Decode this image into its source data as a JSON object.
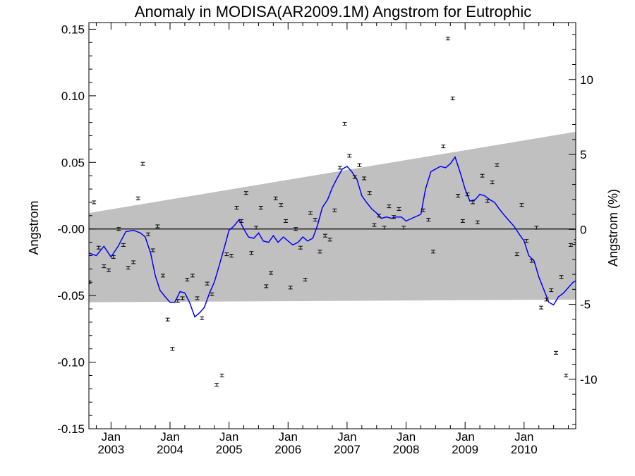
{
  "chart_data": {
    "type": "scatter",
    "title": "Anomaly in MODISA(AR2009.1M) Angstrom for Eutrophic",
    "ylabel": "Angstrom",
    "y2label": "Angstrom (%)",
    "ylim": [
      -0.15,
      0.155
    ],
    "y2lim": [
      -13.3,
      13.8
    ],
    "xlim": [
      2002.625,
      2010.875
    ],
    "y_ticks": [
      {
        "value": 0.15,
        "label": "0.15"
      },
      {
        "value": 0.1,
        "label": "0.10"
      },
      {
        "value": 0.05,
        "label": "0.05"
      },
      {
        "value": 0.0,
        "label": "-0.00"
      },
      {
        "value": -0.05,
        "label": "-0.05"
      },
      {
        "value": -0.1,
        "label": "-0.10"
      },
      {
        "value": -0.15,
        "label": "-0.15"
      }
    ],
    "y2_ticks": [
      {
        "value": 10,
        "label": "10"
      },
      {
        "value": 5,
        "label": "5"
      },
      {
        "value": 0,
        "label": "0"
      },
      {
        "value": -5,
        "label": "-5"
      },
      {
        "value": -10,
        "label": "-10"
      }
    ],
    "x_ticks": [
      {
        "value": 2003.0,
        "month": "Jan",
        "year": "2003"
      },
      {
        "value": 2004.0,
        "month": "Jan",
        "year": "2004"
      },
      {
        "value": 2005.0,
        "month": "Jan",
        "year": "2005"
      },
      {
        "value": 2006.0,
        "month": "Jan",
        "year": "2006"
      },
      {
        "value": 2007.0,
        "month": "Jan",
        "year": "2007"
      },
      {
        "value": 2008.0,
        "month": "Jan",
        "year": "2008"
      },
      {
        "value": 2009.0,
        "month": "Jan",
        "year": "2009"
      },
      {
        "value": 2010.0,
        "month": "Jan",
        "year": "2010"
      }
    ],
    "zero_line": 0.0,
    "band": {
      "x": [
        2002.625,
        2010.875
      ],
      "upper": [
        0.012,
        0.073
      ],
      "lower": [
        -0.055,
        -0.053
      ],
      "color": "#c0c0c0"
    },
    "points": {
      "color": "#000000",
      "x": [
        2002.63,
        2002.71,
        2002.79,
        2002.88,
        2002.96,
        2003.04,
        2003.13,
        2003.21,
        2003.29,
        2003.38,
        2003.46,
        2003.54,
        2003.63,
        2003.71,
        2003.79,
        2003.88,
        2003.96,
        2004.04,
        2004.13,
        2004.21,
        2004.29,
        2004.38,
        2004.46,
        2004.54,
        2004.63,
        2004.71,
        2004.79,
        2004.88,
        2004.96,
        2005.04,
        2005.13,
        2005.21,
        2005.29,
        2005.38,
        2005.46,
        2005.54,
        2005.63,
        2005.71,
        2005.79,
        2005.88,
        2005.96,
        2006.04,
        2006.13,
        2006.21,
        2006.29,
        2006.38,
        2006.46,
        2006.54,
        2006.63,
        2006.71,
        2006.79,
        2006.88,
        2006.96,
        2007.04,
        2007.13,
        2007.21,
        2007.29,
        2007.38,
        2007.46,
        2007.54,
        2007.63,
        2007.71,
        2007.79,
        2007.88,
        2007.96,
        2008.29,
        2008.38,
        2008.46,
        2008.63,
        2008.71,
        2008.79,
        2008.88,
        2008.96,
        2009.04,
        2009.13,
        2009.21,
        2009.29,
        2009.38,
        2009.46,
        2009.54,
        2009.88,
        2009.96,
        2010.04,
        2010.13,
        2010.21,
        2010.29,
        2010.38,
        2010.46,
        2010.54,
        2010.63,
        2010.71,
        2010.79,
        2010.88
      ],
      "y": [
        -0.04,
        0.02,
        -0.014,
        -0.028,
        -0.031,
        -0.021,
        0.0,
        -0.012,
        -0.029,
        -0.025,
        0.023,
        0.049,
        -0.004,
        -0.016,
        0.002,
        -0.035,
        -0.068,
        -0.09,
        -0.054,
        -0.052,
        -0.038,
        -0.035,
        -0.052,
        -0.067,
        -0.041,
        -0.049,
        -0.117,
        -0.11,
        -0.019,
        -0.02,
        0.016,
        0.006,
        0.027,
        -0.018,
        0.001,
        0.016,
        -0.043,
        -0.033,
        0.023,
        0.018,
        0.006,
        -0.044,
        0.0,
        -0.014,
        -0.038,
        0.012,
        0.007,
        -0.017,
        -0.005,
        -0.008,
        0.014,
        0.046,
        0.079,
        0.055,
        0.039,
        0.048,
        0.038,
        0.027,
        0.003,
        0.01,
        0.001,
        0.017,
        0.009,
        0.015,
        0.001,
        0.014,
        0.007,
        -0.017,
        0.062,
        0.143,
        0.098,
        0.025,
        0.006,
        0.026,
        0.02,
        0.005,
        0.04,
        0.021,
        0.035,
        0.048,
        -0.019,
        0.018,
        -0.009,
        -0.024,
        0.001,
        -0.059,
        -0.053,
        -0.046,
        -0.093,
        -0.036,
        -0.11,
        -0.012,
        -0.009
      ]
    },
    "smooth_line": {
      "color": "#0000ff",
      "x": [
        2002.62,
        2002.75,
        2002.88,
        2003.0,
        2003.12,
        2003.25,
        2003.38,
        2003.5,
        2003.58,
        2003.67,
        2003.75,
        2003.83,
        2003.92,
        2004.0,
        2004.08,
        2004.17,
        2004.25,
        2004.33,
        2004.42,
        2004.5,
        2004.58,
        2004.67,
        2004.75,
        2004.83,
        2004.92,
        2005.0,
        2005.08,
        2005.17,
        2005.25,
        2005.33,
        2005.42,
        2005.5,
        2005.58,
        2005.67,
        2005.75,
        2005.83,
        2005.92,
        2006.0,
        2006.08,
        2006.17,
        2006.25,
        2006.33,
        2006.42,
        2006.5,
        2006.58,
        2006.67,
        2006.75,
        2006.83,
        2006.92,
        2007.0,
        2007.08,
        2007.17,
        2007.25,
        2007.33,
        2007.42,
        2007.5,
        2007.58,
        2007.67,
        2007.75,
        2007.83,
        2007.92,
        2008.0,
        2008.25,
        2008.33,
        2008.42,
        2008.5,
        2008.58,
        2008.67,
        2008.75,
        2008.83,
        2008.92,
        2009.0,
        2009.08,
        2009.17,
        2009.25,
        2009.33,
        2009.42,
        2009.5,
        2009.58,
        2009.67,
        2009.75,
        2009.83,
        2009.92,
        2010.0,
        2010.08,
        2010.17,
        2010.25,
        2010.33,
        2010.42,
        2010.5,
        2010.58,
        2010.67,
        2010.75,
        2010.83,
        2010.875
      ],
      "y": [
        -0.018,
        -0.02,
        -0.013,
        -0.021,
        -0.013,
        -0.002,
        -0.001,
        -0.003,
        -0.006,
        -0.018,
        -0.035,
        -0.046,
        -0.051,
        -0.055,
        -0.055,
        -0.047,
        -0.048,
        -0.055,
        -0.066,
        -0.063,
        -0.059,
        -0.048,
        -0.04,
        -0.028,
        -0.014,
        -0.001,
        0.002,
        0.007,
        0.0,
        -0.006,
        -0.007,
        -0.003,
        -0.009,
        -0.01,
        -0.005,
        -0.01,
        -0.006,
        -0.009,
        -0.012,
        -0.01,
        -0.006,
        -0.009,
        -0.007,
        0.003,
        0.016,
        0.022,
        0.031,
        0.038,
        0.045,
        0.047,
        0.043,
        0.037,
        0.025,
        0.02,
        0.015,
        0.012,
        0.008,
        0.009,
        0.008,
        0.009,
        0.009,
        0.006,
        0.011,
        0.03,
        0.043,
        0.045,
        0.047,
        0.046,
        0.049,
        0.054,
        0.042,
        0.03,
        0.021,
        0.022,
        0.026,
        0.025,
        0.022,
        0.02,
        0.015,
        0.01,
        0.006,
        0.002,
        -0.004,
        -0.009,
        -0.02,
        -0.024,
        -0.036,
        -0.045,
        -0.055,
        -0.057,
        -0.051,
        -0.048,
        -0.044,
        -0.04,
        -0.039
      ]
    }
  }
}
